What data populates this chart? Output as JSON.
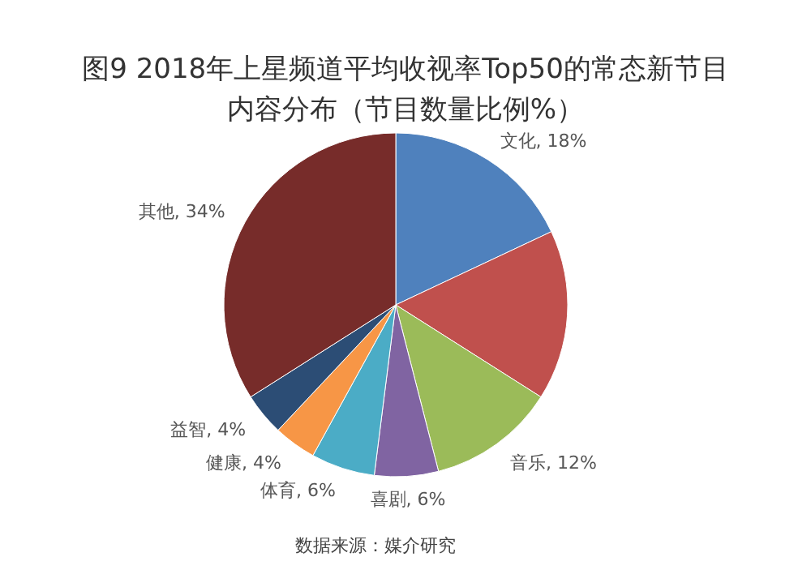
{
  "chart_data": {
    "type": "pie",
    "title": "图9 2018年上星频道平均收视率Top50的常态新节目",
    "subtitle": "内容分布（节目数量比例%）",
    "categories": [
      "文化",
      null,
      "音乐",
      "喜剧",
      "体育",
      "健康",
      "益智",
      "其他"
    ],
    "values": [
      18,
      16,
      12,
      6,
      6,
      4,
      4,
      34
    ],
    "colors": [
      "#4f81bd",
      "#c0504d",
      "#9bbb59",
      "#8064a2",
      "#4bacc6",
      "#f79646",
      "#2c4d75",
      "#772c2a"
    ],
    "value_labels": [
      "18%",
      null,
      "12%",
      "6%",
      "6%",
      "4%",
      "4%",
      "34%"
    ],
    "annotations": [
      "数据来源：媒介研究"
    ]
  }
}
